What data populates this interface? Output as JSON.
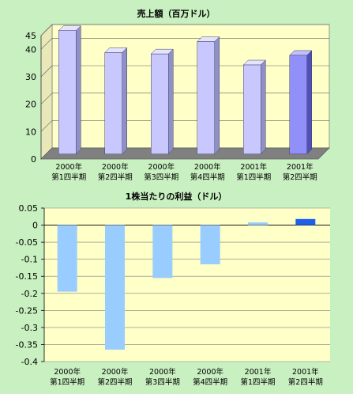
{
  "chart_data": [
    {
      "type": "bar",
      "title": "売上額（百万ドル）",
      "categories": [
        [
          "2000年",
          "第1四半期"
        ],
        [
          "2000年",
          "第2四半期"
        ],
        [
          "2000年",
          "第3四半期"
        ],
        [
          "2000年",
          "第4四半期"
        ],
        [
          "2001年",
          "第1四半期"
        ],
        [
          "2001年",
          "第2四半期"
        ]
      ],
      "values": [
        45,
        37,
        36.5,
        41,
        32.5,
        36
      ],
      "ylim": [
        0,
        45
      ],
      "yticks": [
        "0",
        "10",
        "20",
        "30",
        "40",
        "45"
      ],
      "grid": true,
      "highlight_index": 5,
      "colors": {
        "bar": "#c8c8ff",
        "bar_side": "#9090c8",
        "bar_top": "#e4e4ff",
        "bar_highlight": "#9090f8",
        "bar_highlight_side": "#5050b8",
        "bar_highlight_top": "#c0c0ff",
        "plot_bg": "#ffffc8",
        "floor": "#808080",
        "highlight_label": "#2040ff"
      }
    },
    {
      "type": "bar",
      "title": "1株当たりの利益（ドル）",
      "categories": [
        [
          "2000年",
          "第1四半期"
        ],
        [
          "2000年",
          "第2四半期"
        ],
        [
          "2000年",
          "第3四半期"
        ],
        [
          "2000年",
          "第4四半期"
        ],
        [
          "2001年",
          "第1四半期"
        ],
        [
          "2001年",
          "第2四半期"
        ]
      ],
      "values": [
        -0.195,
        -0.365,
        -0.155,
        -0.115,
        0.008,
        0.018
      ],
      "ylim": [
        -0.4,
        0.05
      ],
      "yticks": [
        "0.05",
        "0",
        "-0.05",
        "-0.1",
        "-0.15",
        "-0.2",
        "-0.25",
        "-0.3",
        "-0.35",
        "-0.4"
      ],
      "grid": true,
      "highlight_index": 5,
      "colors": {
        "bar": "#99ccff",
        "bar_highlight": "#2060e8",
        "plot_bg": "#ffffc8",
        "highlight_label": "#2040ff"
      }
    }
  ]
}
